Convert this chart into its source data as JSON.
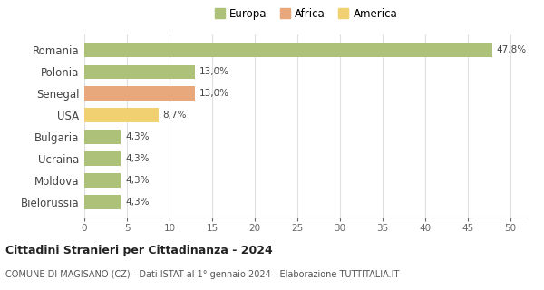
{
  "categories": [
    "Romania",
    "Polonia",
    "Senegal",
    "USA",
    "Bulgaria",
    "Ucraina",
    "Moldova",
    "Bielorussia"
  ],
  "values": [
    47.8,
    13.0,
    13.0,
    8.7,
    4.3,
    4.3,
    4.3,
    4.3
  ],
  "labels": [
    "47,8%",
    "13,0%",
    "13,0%",
    "8,7%",
    "4,3%",
    "4,3%",
    "4,3%",
    "4,3%"
  ],
  "bar_colors": [
    "#adc178",
    "#adc178",
    "#e8a87c",
    "#f0d070",
    "#adc178",
    "#adc178",
    "#adc178",
    "#adc178"
  ],
  "legend_items": [
    {
      "label": "Europa",
      "color": "#adc178"
    },
    {
      "label": "Africa",
      "color": "#e8a87c"
    },
    {
      "label": "America",
      "color": "#f0d070"
    }
  ],
  "xlim": [
    0,
    52
  ],
  "xticks": [
    0,
    5,
    10,
    15,
    20,
    25,
    30,
    35,
    40,
    45,
    50
  ],
  "title": "Cittadini Stranieri per Cittadinanza - 2024",
  "subtitle": "COMUNE DI MAGISANO (CZ) - Dati ISTAT al 1° gennaio 2024 - Elaborazione TUTTITALIA.IT",
  "background_color": "#ffffff",
  "grid_color": "#e0e0e0",
  "bar_height": 0.65
}
